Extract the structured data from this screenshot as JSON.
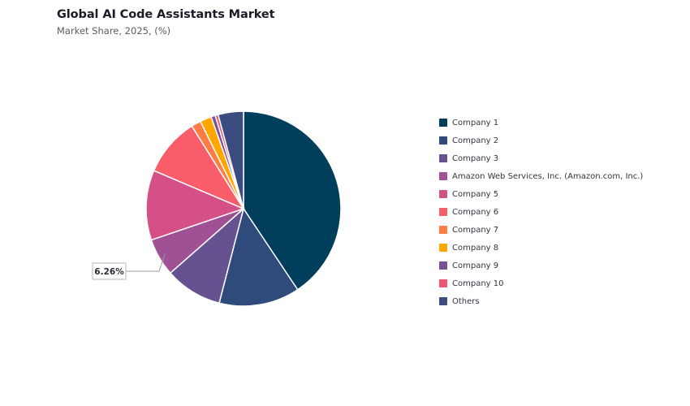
{
  "header": {
    "title": "Global AI Code Assistants Market",
    "subtitle": "Market Share, 2025, (%)"
  },
  "chart_data": {
    "type": "pie",
    "title": "Global AI Code Assistants Market",
    "subtitle": "Market Share, 2025, (%)",
    "legend_position": "right",
    "series": [
      {
        "name": "Company 1",
        "value": 40.6,
        "color": "#003f5c"
      },
      {
        "name": "Company 2",
        "value": 13.4,
        "color": "#2f4b7c"
      },
      {
        "name": "Company 3",
        "value": 9.5,
        "color": "#665191"
      },
      {
        "name": "Amazon Web Services, Inc. (Amazon.com, Inc.)",
        "value": 6.26,
        "color": "#a05195"
      },
      {
        "name": "Company 5",
        "value": 11.6,
        "color": "#d45087"
      },
      {
        "name": "Company 6",
        "value": 9.7,
        "color": "#f95d6a"
      },
      {
        "name": "Company 7",
        "value": 1.6,
        "color": "#ff7c43"
      },
      {
        "name": "Company 8",
        "value": 1.9,
        "color": "#ffa600"
      },
      {
        "name": "Company 9",
        "value": 0.7,
        "color": "#7a5195"
      },
      {
        "name": "Company 10",
        "value": 0.5,
        "color": "#ef5675"
      },
      {
        "name": "Others",
        "value": 4.2,
        "color": "#3a4c80"
      }
    ],
    "annotations": [
      {
        "series": "Amazon Web Services, Inc. (Amazon.com, Inc.)",
        "label": "6.26%"
      }
    ]
  }
}
